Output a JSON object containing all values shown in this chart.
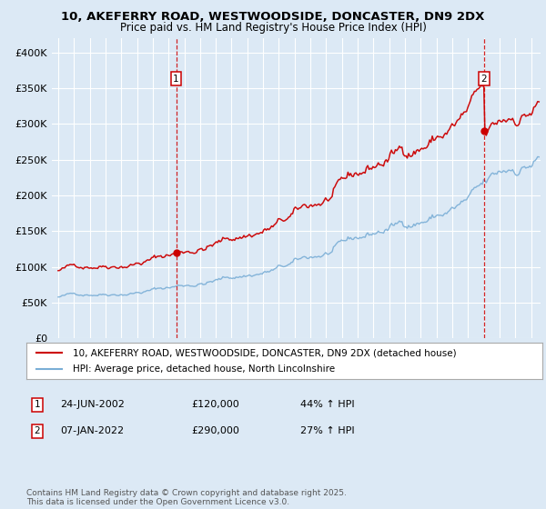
{
  "title_line1": "10, AKEFERRY ROAD, WESTWOODSIDE, DONCASTER, DN9 2DX",
  "title_line2": "Price paid vs. HM Land Registry's House Price Index (HPI)",
  "background_color": "#dce9f5",
  "plot_bg_color": "#dce9f5",
  "ylim": [
    0,
    420000
  ],
  "yticks": [
    0,
    50000,
    100000,
    150000,
    200000,
    250000,
    300000,
    350000,
    400000
  ],
  "ytick_labels": [
    "£0",
    "£50K",
    "£100K",
    "£150K",
    "£200K",
    "£250K",
    "£300K",
    "£350K",
    "£400K"
  ],
  "xlim_start": 1994.6,
  "xlim_end": 2025.6,
  "sale1_date": 2002.48,
  "sale1_price": 120000,
  "sale1_label": "1",
  "sale1_date_str": "24-JUN-2002",
  "sale1_hpi_pct": "44%",
  "sale2_date": 2022.02,
  "sale2_price": 290000,
  "sale2_label": "2",
  "sale2_date_str": "07-JAN-2022",
  "sale2_hpi_pct": "27%",
  "red_line_color": "#cc0000",
  "blue_line_color": "#7aaed6",
  "legend_label_red": "10, AKEFERRY ROAD, WESTWOODSIDE, DONCASTER, DN9 2DX (detached house)",
  "legend_label_blue": "HPI: Average price, detached house, North Lincolnshire",
  "footer_text": "Contains HM Land Registry data © Crown copyright and database right 2025.\nThis data is licensed under the Open Government Licence v3.0.",
  "grid_color": "#ffffff",
  "tick_label_fontsize": 8,
  "title_fontsize": 9.5,
  "subtitle_fontsize": 8.5
}
